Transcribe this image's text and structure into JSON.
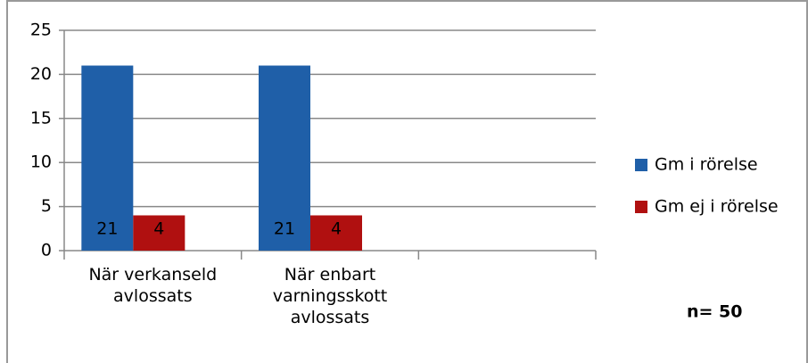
{
  "chart_data": {
    "type": "bar",
    "categories": [
      "När verkanseld avlossats",
      "När enbart varningsskott avlossats",
      null
    ],
    "series": [
      {
        "name": "Gm i rörelse",
        "color": "#1f5fa8",
        "values": [
          21,
          21,
          null
        ]
      },
      {
        "name": "Gm ej i rörelse",
        "color": "#b01010",
        "values": [
          4,
          4,
          null
        ]
      }
    ],
    "ylim": [
      0,
      25
    ],
    "yticks": [
      0,
      5,
      10,
      15,
      20,
      25
    ],
    "grid": true,
    "annotation": "n= 50"
  }
}
